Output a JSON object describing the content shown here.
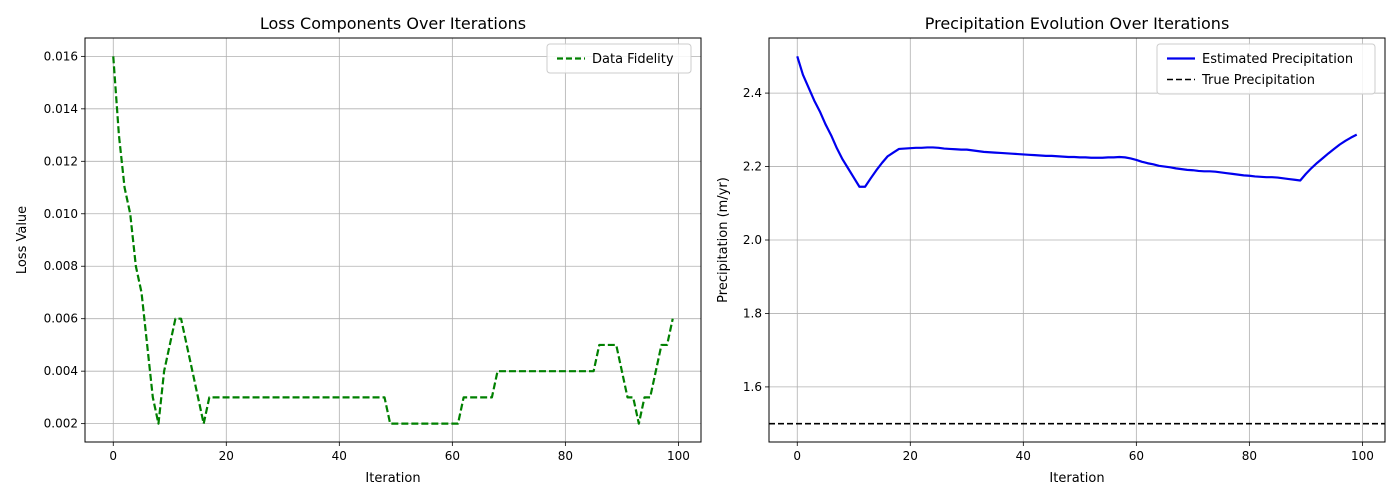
{
  "chart_data": [
    {
      "type": "line",
      "title": "Loss Components Over Iterations",
      "xlabel": "Iteration",
      "ylabel": "Loss Value",
      "xlim": [
        -5,
        104
      ],
      "ylim": [
        0.0013,
        0.0167
      ],
      "xticks": [
        0,
        20,
        40,
        60,
        80,
        100
      ],
      "yticks": [
        0.002,
        0.004,
        0.006,
        0.008,
        0.01,
        0.012,
        0.014,
        0.016
      ],
      "ytick_labels": [
        "0.002",
        "0.004",
        "0.006",
        "0.008",
        "0.010",
        "0.012",
        "0.014",
        "0.016"
      ],
      "grid": true,
      "legend_position": "top-right",
      "series": [
        {
          "name": "Data Fidelity",
          "color": "#008000",
          "dash": "dashed",
          "x": [
            0,
            1,
            2,
            3,
            4,
            5,
            6,
            7,
            8,
            9,
            10,
            11,
            12,
            13,
            14,
            15,
            16,
            17,
            18,
            19,
            20,
            21,
            22,
            23,
            24,
            25,
            26,
            27,
            28,
            29,
            30,
            31,
            32,
            33,
            34,
            35,
            36,
            37,
            38,
            39,
            40,
            41,
            42,
            43,
            44,
            45,
            46,
            47,
            48,
            49,
            50,
            51,
            52,
            53,
            54,
            55,
            56,
            57,
            58,
            59,
            60,
            61,
            62,
            63,
            64,
            65,
            66,
            67,
            68,
            69,
            70,
            71,
            72,
            73,
            74,
            75,
            76,
            77,
            78,
            79,
            80,
            81,
            82,
            83,
            84,
            85,
            86,
            87,
            88,
            89,
            90,
            91,
            92,
            93,
            94,
            95,
            96,
            97,
            98,
            99
          ],
          "values": [
            0.016,
            0.013,
            0.011,
            0.01,
            0.008,
            0.007,
            0.005,
            0.003,
            0.002,
            0.004,
            0.005,
            0.006,
            0.006,
            0.005,
            0.004,
            0.003,
            0.002,
            0.003,
            0.003,
            0.003,
            0.003,
            0.003,
            0.003,
            0.003,
            0.003,
            0.003,
            0.003,
            0.003,
            0.003,
            0.003,
            0.003,
            0.003,
            0.003,
            0.003,
            0.003,
            0.003,
            0.003,
            0.003,
            0.003,
            0.003,
            0.003,
            0.003,
            0.003,
            0.003,
            0.003,
            0.003,
            0.003,
            0.003,
            0.003,
            0.002,
            0.002,
            0.002,
            0.002,
            0.002,
            0.002,
            0.002,
            0.002,
            0.002,
            0.002,
            0.002,
            0.002,
            0.002,
            0.003,
            0.003,
            0.003,
            0.003,
            0.003,
            0.003,
            0.004,
            0.004,
            0.004,
            0.004,
            0.004,
            0.004,
            0.004,
            0.004,
            0.004,
            0.004,
            0.004,
            0.004,
            0.004,
            0.004,
            0.004,
            0.004,
            0.004,
            0.004,
            0.005,
            0.005,
            0.005,
            0.005,
            0.004,
            0.003,
            0.003,
            0.002,
            0.003,
            0.003,
            0.004,
            0.005,
            0.005,
            0.006
          ]
        }
      ]
    },
    {
      "type": "line",
      "title": "Precipitation Evolution Over Iterations",
      "xlabel": "Iteration",
      "ylabel": "Precipitation (m/yr)",
      "xlim": [
        -5,
        104
      ],
      "ylim": [
        1.45,
        2.55
      ],
      "xticks": [
        0,
        20,
        40,
        60,
        80,
        100
      ],
      "yticks": [
        1.6,
        1.8,
        2.0,
        2.2,
        2.4
      ],
      "ytick_labels": [
        "1.6",
        "1.8",
        "2.0",
        "2.2",
        "2.4"
      ],
      "grid": true,
      "legend_position": "top-right",
      "series": [
        {
          "name": "Estimated Precipitation",
          "color": "#0000ee",
          "dash": "solid",
          "x": [
            0,
            1,
            2,
            3,
            4,
            5,
            6,
            7,
            8,
            9,
            10,
            11,
            12,
            13,
            14,
            15,
            16,
            17,
            18,
            19,
            20,
            21,
            22,
            23,
            24,
            25,
            26,
            27,
            28,
            29,
            30,
            31,
            32,
            33,
            34,
            35,
            36,
            37,
            38,
            39,
            40,
            41,
            42,
            43,
            44,
            45,
            46,
            47,
            48,
            49,
            50,
            51,
            52,
            53,
            54,
            55,
            56,
            57,
            58,
            59,
            60,
            61,
            62,
            63,
            64,
            65,
            66,
            67,
            68,
            69,
            70,
            71,
            72,
            73,
            74,
            75,
            76,
            77,
            78,
            79,
            80,
            81,
            82,
            83,
            84,
            85,
            86,
            87,
            88,
            89,
            90,
            91,
            92,
            93,
            94,
            95,
            96,
            97,
            98,
            99
          ],
          "values": [
            2.5,
            2.45,
            2.415,
            2.38,
            2.35,
            2.315,
            2.285,
            2.25,
            2.22,
            2.195,
            2.17,
            2.145,
            2.145,
            2.168,
            2.19,
            2.21,
            2.228,
            2.238,
            2.248,
            2.249,
            2.25,
            2.251,
            2.251,
            2.252,
            2.252,
            2.251,
            2.249,
            2.248,
            2.247,
            2.246,
            2.246,
            2.244,
            2.242,
            2.24,
            2.239,
            2.238,
            2.237,
            2.236,
            2.235,
            2.234,
            2.233,
            2.232,
            2.231,
            2.23,
            2.229,
            2.229,
            2.228,
            2.227,
            2.226,
            2.226,
            2.225,
            2.225,
            2.224,
            2.224,
            2.224,
            2.225,
            2.225,
            2.226,
            2.225,
            2.222,
            2.218,
            2.213,
            2.209,
            2.206,
            2.202,
            2.2,
            2.198,
            2.195,
            2.193,
            2.191,
            2.19,
            2.188,
            2.187,
            2.187,
            2.186,
            2.184,
            2.182,
            2.18,
            2.178,
            2.176,
            2.175,
            2.173,
            2.172,
            2.171,
            2.171,
            2.17,
            2.168,
            2.166,
            2.164,
            2.162,
            2.18,
            2.196,
            2.21,
            2.223,
            2.236,
            2.248,
            2.26,
            2.27,
            2.279,
            2.287
          ]
        },
        {
          "name": "True Precipitation",
          "color": "#000000",
          "dash": "dashed",
          "x": [
            -5,
            104
          ],
          "values": [
            1.5,
            1.5
          ]
        }
      ]
    }
  ]
}
